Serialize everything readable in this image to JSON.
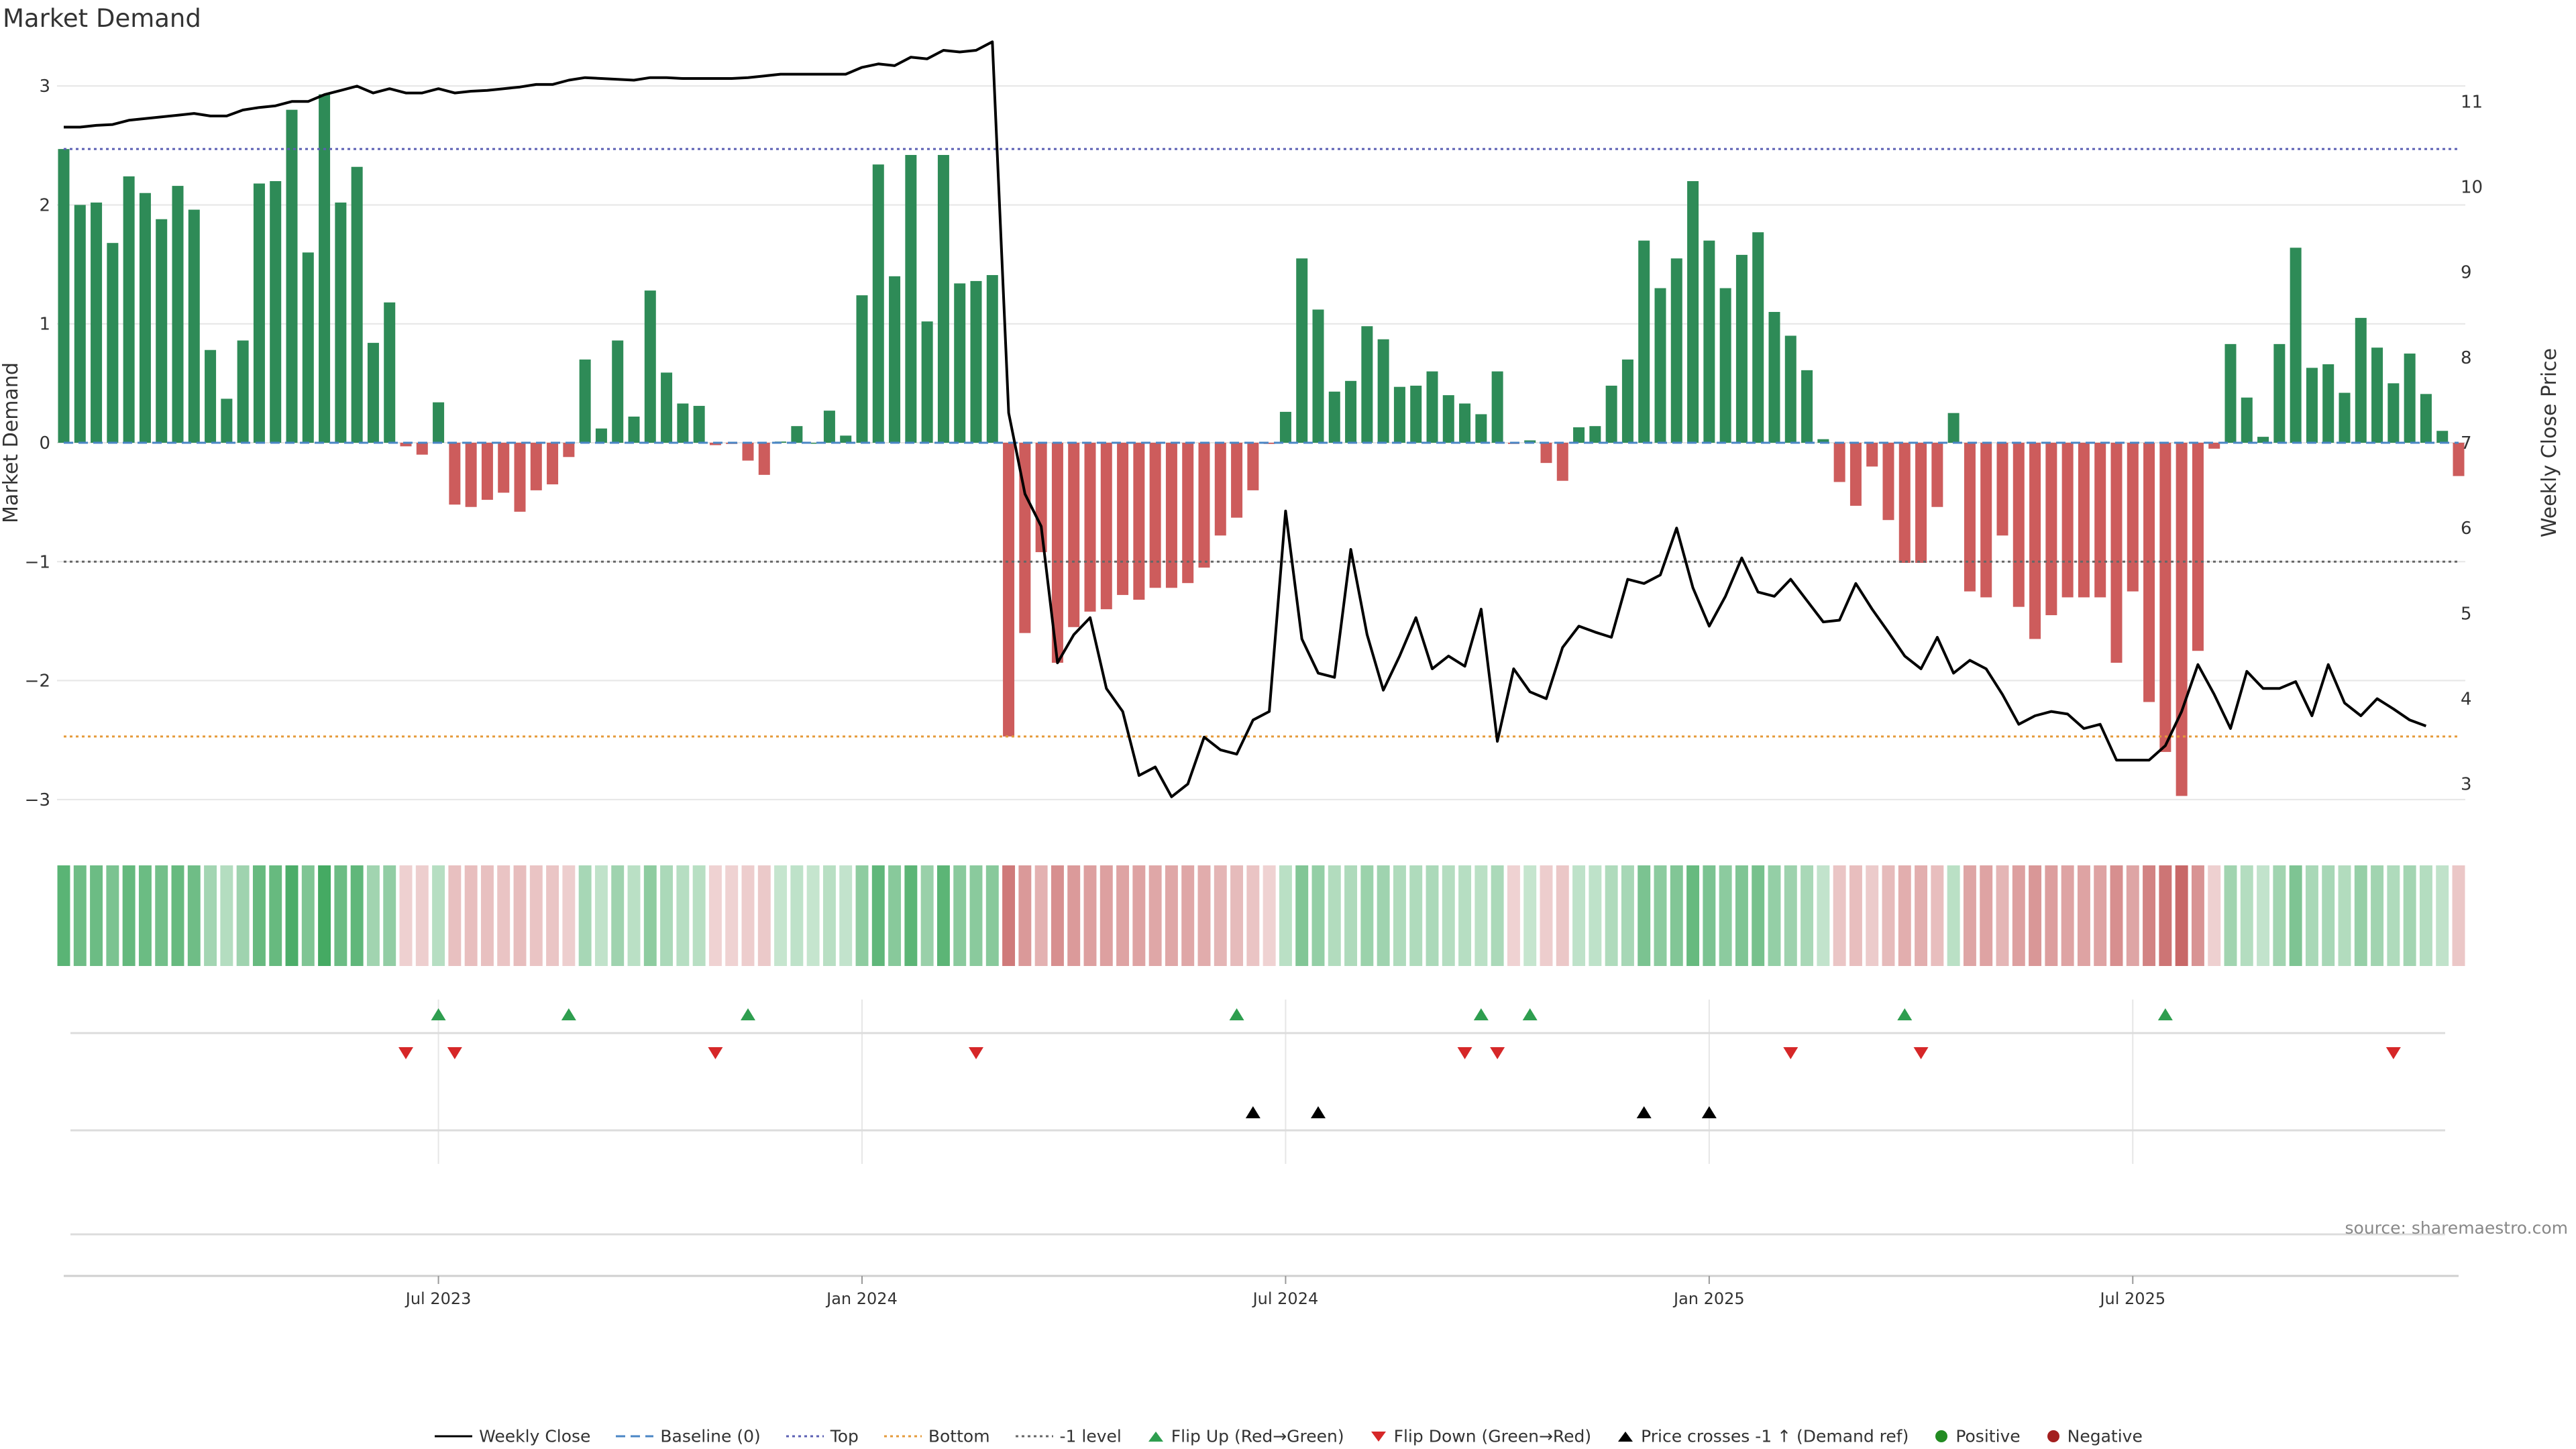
{
  "page": {
    "title": "Market Demand",
    "source": "source: sharemaestro.com"
  },
  "colors": {
    "positive": "#2e8b57",
    "negative": "#cd5c5c",
    "price_line": "#000000",
    "baseline": "#4a86c5",
    "top_line": "#5b5fb3",
    "bottom_line": "#e59a3a",
    "minus1_line": "#666666",
    "flip_up": "#2e9e4f",
    "flip_down": "#d62728",
    "cross": "#000000",
    "grid": "#e6e6e6"
  },
  "chart_data": {
    "type": "bar",
    "title": "Market Demand",
    "ylabel": "Market Demand",
    "y2label": "Weekly Close Price",
    "ylim": [
      -3.3,
      3.3
    ],
    "y2lim": [
      2.4,
      11.6
    ],
    "yticks": [
      3,
      2,
      1,
      0,
      -1,
      -2,
      -3
    ],
    "y2ticks": [
      11,
      10,
      9,
      8,
      7,
      6,
      5,
      4,
      3
    ],
    "top_level": 2.47,
    "bottom_level": -2.47,
    "minus1_level": -1,
    "x_ticks": [
      {
        "index": 23,
        "label": "Jul 2023"
      },
      {
        "index": 49,
        "label": "Jan 2024"
      },
      {
        "index": 75,
        "label": "Jul 2024"
      },
      {
        "index": 101,
        "label": "Jan 2025"
      },
      {
        "index": 127,
        "label": "Jul 2025"
      }
    ],
    "demand": [
      2.47,
      2.0,
      2.02,
      1.68,
      2.24,
      2.1,
      1.88,
      2.16,
      1.96,
      0.78,
      0.37,
      0.86,
      2.18,
      2.2,
      2.8,
      1.6,
      2.93,
      2.02,
      2.32,
      0.84,
      1.18,
      -0.03,
      -0.1,
      0.34,
      -0.52,
      -0.54,
      -0.48,
      -0.42,
      -0.58,
      -0.4,
      -0.35,
      -0.12,
      0.7,
      0.12,
      0.86,
      0.22,
      1.28,
      0.59,
      0.33,
      0.31,
      -0.02,
      -0.01,
      -0.15,
      -0.27,
      0.01,
      0.14,
      0.0,
      0.27,
      0.06,
      1.24,
      2.34,
      1.4,
      2.42,
      1.02,
      2.42,
      1.34,
      1.36,
      1.41,
      -2.47,
      -1.6,
      -0.92,
      -1.85,
      -1.55,
      -1.42,
      -1.4,
      -1.28,
      -1.32,
      -1.22,
      -1.22,
      -1.18,
      -1.05,
      -0.78,
      -0.63,
      -0.4,
      -0.01,
      0.26,
      1.55,
      1.12,
      0.43,
      0.52,
      0.98,
      0.87,
      0.47,
      0.48,
      0.6,
      0.4,
      0.33,
      0.24,
      0.6,
      -0.01,
      0.02,
      -0.17,
      -0.32,
      0.13,
      0.14,
      0.48,
      0.7,
      1.7,
      1.3,
      1.55,
      2.2,
      1.7,
      1.3,
      1.58,
      1.77,
      1.1,
      0.9,
      0.61,
      0.03,
      -0.33,
      -0.53,
      -0.2,
      -0.65,
      -1.01,
      -1.01,
      -0.54,
      0.25,
      -1.25,
      -1.3,
      -0.78,
      -1.38,
      -1.65,
      -1.45,
      -1.3,
      -1.3,
      -1.3,
      -1.85,
      -1.25,
      -2.18,
      -2.6,
      -2.97,
      -1.75,
      -0.05,
      0.83,
      0.38,
      0.05,
      0.83,
      1.64,
      0.63,
      0.66,
      0.42,
      1.05,
      0.8,
      0.5,
      0.75,
      0.41,
      0.1,
      -0.28
    ],
    "price": [
      10.7,
      10.7,
      10.72,
      10.73,
      10.78,
      10.8,
      10.82,
      10.84,
      10.86,
      10.83,
      10.83,
      10.9,
      10.93,
      10.95,
      11.0,
      11.0,
      11.08,
      11.13,
      11.18,
      11.1,
      11.15,
      11.1,
      11.1,
      11.15,
      11.1,
      11.12,
      11.13,
      11.15,
      11.17,
      11.2,
      11.2,
      11.25,
      11.28,
      11.27,
      11.26,
      11.25,
      11.28,
      11.28,
      11.27,
      11.27,
      11.27,
      11.27,
      11.28,
      11.3,
      11.32,
      11.32,
      11.32,
      11.32,
      11.32,
      11.4,
      11.44,
      11.42,
      11.52,
      11.5,
      11.6,
      11.58,
      11.6,
      11.7,
      7.35,
      6.4,
      6.02,
      4.42,
      4.75,
      4.95,
      4.12,
      3.85,
      3.1,
      3.2,
      2.85,
      3.0,
      3.55,
      3.4,
      3.35,
      3.75,
      3.85,
      6.2,
      4.7,
      4.3,
      4.25,
      5.75,
      4.75,
      4.1,
      4.5,
      4.95,
      4.35,
      4.5,
      4.38,
      5.05,
      3.5,
      4.35,
      4.08,
      4.0,
      4.6,
      4.85,
      4.78,
      4.72,
      5.4,
      5.35,
      5.45,
      6.0,
      5.3,
      4.85,
      5.2,
      5.65,
      5.25,
      5.2,
      5.4,
      5.15,
      4.9,
      4.92,
      5.35,
      5.05,
      4.78,
      4.5,
      4.35,
      4.72,
      4.3,
      4.45,
      4.35,
      4.05,
      3.7,
      3.8,
      3.85,
      3.82,
      3.65,
      3.7,
      3.28,
      3.28,
      3.28,
      3.45,
      3.85,
      4.4,
      4.05,
      3.65,
      4.32,
      4.12,
      4.12,
      4.2,
      3.8,
      4.4,
      3.95,
      3.8,
      4.0,
      3.88,
      3.75,
      3.68
    ],
    "flip_up": [
      23,
      31,
      42,
      72,
      87,
      90,
      113,
      129
    ],
    "flip_down": [
      21,
      24,
      40,
      56,
      86,
      88,
      106,
      114,
      143
    ],
    "price_cross": [
      73,
      77,
      97,
      101
    ]
  },
  "legend": [
    {
      "key": "weekly_close",
      "label": "Weekly Close"
    },
    {
      "key": "baseline",
      "label": "Baseline (0)"
    },
    {
      "key": "top",
      "label": "Top"
    },
    {
      "key": "bottom",
      "label": "Bottom"
    },
    {
      "key": "minus1",
      "label": "-1 level"
    },
    {
      "key": "flip_up",
      "label": "Flip Up (Red→Green)"
    },
    {
      "key": "flip_down",
      "label": "Flip Down (Green→Red)"
    },
    {
      "key": "cross",
      "label": "Price crosses -1 ↑ (Demand ref)"
    },
    {
      "key": "positive",
      "label": "Positive"
    },
    {
      "key": "negative",
      "label": "Negative"
    }
  ]
}
